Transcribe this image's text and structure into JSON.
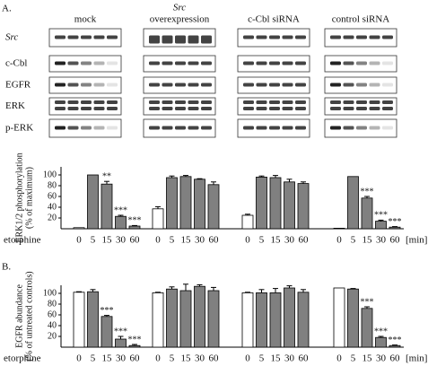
{
  "panel_a_label": "A.",
  "panel_b_label": "B.",
  "groups": [
    {
      "label": "mock"
    },
    {
      "label_italic": "Src",
      "label": "overexpression"
    },
    {
      "label": "c-Cbl siRNA"
    },
    {
      "label": "control siRNA"
    }
  ],
  "blot_rows": [
    {
      "label_italic": "Src"
    },
    {
      "label": "c-Cbl"
    },
    {
      "label": "EGFR"
    },
    {
      "label": "ERK"
    },
    {
      "label": "p-ERK"
    }
  ],
  "chart_data": [
    {
      "type": "bar",
      "ylabel": [
        "ERK1/2 phosphorylation",
        "(% of maximum)"
      ],
      "xlabel": "etorphine",
      "xunit": "[min]",
      "categories": [
        "0",
        "5",
        "15",
        "30",
        "60"
      ],
      "bar_colors": [
        "#ffffff",
        "#808080",
        "#808080",
        "#808080",
        "#808080"
      ],
      "ylim": [
        0,
        115
      ],
      "yticks": [
        20,
        40,
        60,
        80,
        100
      ],
      "groups": [
        {
          "values": [
            2,
            100,
            83,
            23,
            5
          ],
          "errors": [
            0,
            0,
            5,
            2,
            1
          ],
          "annotations": [
            null,
            null,
            "**",
            "***",
            "***"
          ]
        },
        {
          "values": [
            37,
            95,
            97,
            92,
            82
          ],
          "errors": [
            4,
            3,
            2,
            1,
            5
          ],
          "annotations": [
            null,
            null,
            null,
            null,
            null
          ]
        },
        {
          "values": [
            25,
            96,
            95,
            87,
            84
          ],
          "errors": [
            2,
            2,
            4,
            5,
            3
          ],
          "annotations": [
            null,
            null,
            null,
            null,
            null
          ]
        },
        {
          "values": [
            1,
            97,
            57,
            14,
            3
          ],
          "errors": [
            0,
            0,
            3,
            2,
            1
          ],
          "annotations": [
            null,
            null,
            "***",
            "***",
            "***"
          ]
        }
      ]
    },
    {
      "type": "bar",
      "ylabel": [
        "EGFR abundance",
        "(% of untreated controls)"
      ],
      "xlabel": "etorphine",
      "xunit": "[min]",
      "categories": [
        "0",
        "5",
        "15",
        "30",
        "60"
      ],
      "bar_colors": [
        "#ffffff",
        "#808080",
        "#808080",
        "#808080",
        "#808080"
      ],
      "ylim": [
        0,
        115
      ],
      "yticks": [
        20,
        40,
        60,
        80,
        100
      ],
      "groups": [
        {
          "values": [
            102,
            103,
            57,
            15,
            3
          ],
          "errors": [
            1,
            4,
            2,
            5,
            2
          ],
          "annotations": [
            null,
            null,
            "***",
            "***",
            "***"
          ]
        },
        {
          "values": [
            101,
            108,
            105,
            113,
            105
          ],
          "errors": [
            1,
            4,
            12,
            3,
            6
          ],
          "annotations": [
            null,
            null,
            null,
            null,
            null
          ]
        },
        {
          "values": [
            101,
            101,
            101,
            110,
            102
          ],
          "errors": [
            1,
            6,
            8,
            4,
            5
          ],
          "annotations": [
            null,
            null,
            null,
            null,
            null
          ]
        },
        {
          "values": [
            110,
            108,
            72,
            18,
            3
          ],
          "errors": [
            0,
            1,
            3,
            2,
            1
          ],
          "annotations": [
            null,
            null,
            "***",
            "***",
            "***"
          ]
        }
      ]
    }
  ]
}
